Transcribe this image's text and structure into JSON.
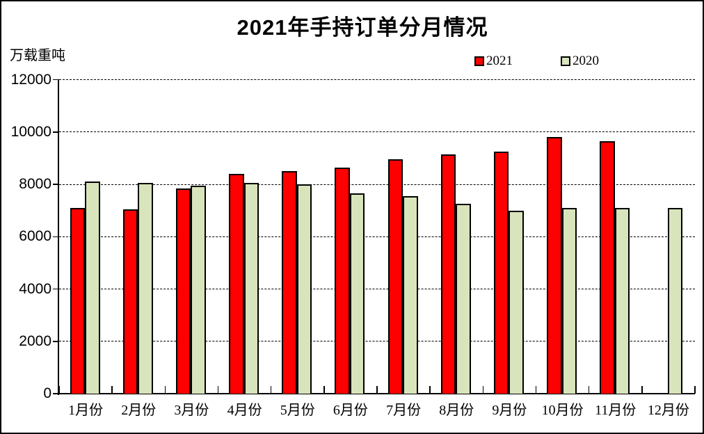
{
  "chart_data": {
    "type": "bar",
    "title": "2021年手持订单分月情况",
    "unit_label": "万载重吨",
    "xlabel": "",
    "ylabel": "万载重吨",
    "categories": [
      "1月份",
      "2月份",
      "3月份",
      "4月份",
      "5月份",
      "6月份",
      "7月份",
      "8月份",
      "9月份",
      "10月份",
      "11月份",
      "12月份"
    ],
    "series": [
      {
        "name": "2021",
        "color": "#ff0000",
        "values": [
          7100,
          7050,
          7850,
          8400,
          8500,
          8650,
          8950,
          9150,
          9250,
          9800,
          9650,
          null
        ]
      },
      {
        "name": "2020",
        "color": "#d8e4bc",
        "values": [
          8100,
          8050,
          7950,
          8050,
          8000,
          7650,
          7550,
          7250,
          7000,
          7100,
          7100,
          7100
        ]
      }
    ],
    "ylim": [
      0,
      12000
    ],
    "yticks": [
      {
        "value": 0,
        "label": "0"
      },
      {
        "value": 2000,
        "label": "2000"
      },
      {
        "value": 4000,
        "label": "4000"
      },
      {
        "value": 6000,
        "label": "6000"
      },
      {
        "value": 8000,
        "label": "8000"
      },
      {
        "value": 10000,
        "label": "10000"
      },
      {
        "value": 12000,
        "label": "12000"
      }
    ],
    "grid": "horizontal-dashed",
    "legend_position": "top-right",
    "axis_color": "#000000",
    "background_color": "#ffffff"
  }
}
